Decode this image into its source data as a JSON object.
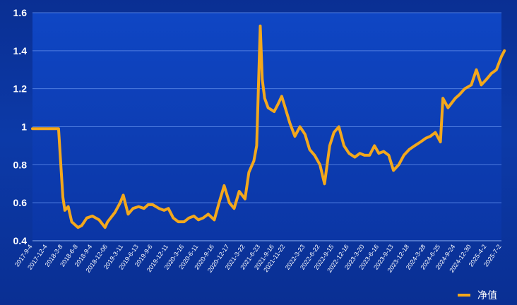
{
  "chart_data": {
    "type": "line",
    "title": "",
    "xlabel": "",
    "ylabel": "",
    "ylim": [
      0.4,
      1.6
    ],
    "yticks": [
      0.4,
      0.6,
      0.8,
      1.0,
      1.2,
      1.4,
      1.6
    ],
    "ytick_labels": [
      "0.4",
      "0.6",
      "0.8",
      "1",
      "1.2",
      "1.4",
      "1.6"
    ],
    "xtick_labels": [
      "2017-9-4",
      "2017-12-4",
      "2018-3-8",
      "2018-6-8",
      "2018-9-4",
      "2018-12-06",
      "2019-3-11",
      "2019-6-13",
      "2019-9-6",
      "2019-12-11",
      "2020-3-16",
      "2020-6-11",
      "2020-9-16",
      "2020-12-17",
      "2021-3-22",
      "2021-6-23",
      "2021-9-16",
      "2021-11-22",
      "2022-3-23",
      "2022-6-22",
      "2022-9-15",
      "2022-12-16",
      "2023-3-20",
      "2023-6-16",
      "2023-9-13",
      "2023-12-18",
      "2024-3-28",
      "2024-6-25",
      "2024-9-24",
      "2024-12-30",
      "2025-4-2",
      "2025-7-2"
    ],
    "grid": true,
    "legend_position": "bottom-right",
    "series": [
      {
        "name": "净值",
        "color": "#f3a81c",
        "x": [
          "2017-9-4",
          "2017-9-15",
          "2017-10-15",
          "2017-11-15",
          "2017-12-4",
          "2018-1-10",
          "2018-2-10",
          "2018-3-8",
          "2018-3-20",
          "2018-4-10",
          "2018-5-1",
          "2018-6-8",
          "2018-7-1",
          "2018-8-1",
          "2018-9-4",
          "2018-10-15",
          "2018-11-20",
          "2018-12-06",
          "2019-1-20",
          "2019-2-20",
          "2019-3-11",
          "2019-4-10",
          "2019-5-10",
          "2019-6-13",
          "2019-7-15",
          "2019-8-10",
          "2019-9-6",
          "2019-10-15",
          "2019-11-15",
          "2019-12-11",
          "2020-1-10",
          "2020-2-10",
          "2020-3-16",
          "2020-4-15",
          "2020-5-15",
          "2020-6-11",
          "2020-7-10",
          "2020-8-10",
          "2020-9-16",
          "2020-10-15",
          "2020-11-15",
          "2020-12-17",
          "2021-1-15",
          "2021-2-15",
          "2021-3-22",
          "2021-4-15",
          "2021-5-15",
          "2021-6-1",
          "2021-6-23",
          "2021-7-5",
          "2021-7-20",
          "2021-8-10",
          "2021-9-16",
          "2021-10-10",
          "2021-11-1",
          "2021-11-22",
          "2021-12-20",
          "2022-1-20",
          "2022-2-20",
          "2022-3-23",
          "2022-4-20",
          "2022-5-20",
          "2022-6-22",
          "2022-7-20",
          "2022-8-20",
          "2022-9-15",
          "2022-10-15",
          "2022-11-15",
          "2022-12-16",
          "2023-1-20",
          "2023-2-20",
          "2023-3-20",
          "2023-4-20",
          "2023-5-20",
          "2023-6-16",
          "2023-7-15",
          "2023-8-15",
          "2023-9-13",
          "2023-10-15",
          "2023-11-15",
          "2023-12-18",
          "2024-1-20",
          "2024-2-25",
          "2024-3-28",
          "2024-4-25",
          "2024-5-25",
          "2024-6-25",
          "2024-7-10",
          "2024-8-10",
          "2024-9-24",
          "2024-10-20",
          "2024-11-20",
          "2024-12-30",
          "2025-1-30",
          "2025-3-1",
          "2025-4-2",
          "2025-5-1",
          "2025-6-1",
          "2025-7-2",
          "2025-7-20"
        ],
        "values": [
          0.99,
          0.99,
          0.99,
          0.99,
          0.99,
          0.99,
          0.99,
          0.63,
          0.56,
          0.58,
          0.5,
          0.47,
          0.48,
          0.52,
          0.53,
          0.51,
          0.47,
          0.5,
          0.55,
          0.6,
          0.64,
          0.54,
          0.57,
          0.58,
          0.57,
          0.59,
          0.59,
          0.57,
          0.56,
          0.57,
          0.52,
          0.5,
          0.5,
          0.52,
          0.53,
          0.51,
          0.52,
          0.54,
          0.51,
          0.6,
          0.69,
          0.6,
          0.57,
          0.66,
          0.62,
          0.76,
          0.82,
          0.9,
          1.53,
          1.25,
          1.15,
          1.1,
          1.08,
          1.12,
          1.16,
          1.1,
          1.02,
          0.95,
          1.0,
          0.96,
          0.88,
          0.85,
          0.8,
          0.7,
          0.9,
          0.97,
          1.0,
          0.9,
          0.86,
          0.84,
          0.86,
          0.85,
          0.85,
          0.9,
          0.86,
          0.87,
          0.85,
          0.77,
          0.8,
          0.85,
          0.88,
          0.9,
          0.92,
          0.94,
          0.95,
          0.97,
          0.92,
          1.15,
          1.1,
          1.15,
          1.17,
          1.2,
          1.22,
          1.3,
          1.22,
          1.25,
          1.28,
          1.3,
          1.37,
          1.4
        ]
      }
    ]
  }
}
